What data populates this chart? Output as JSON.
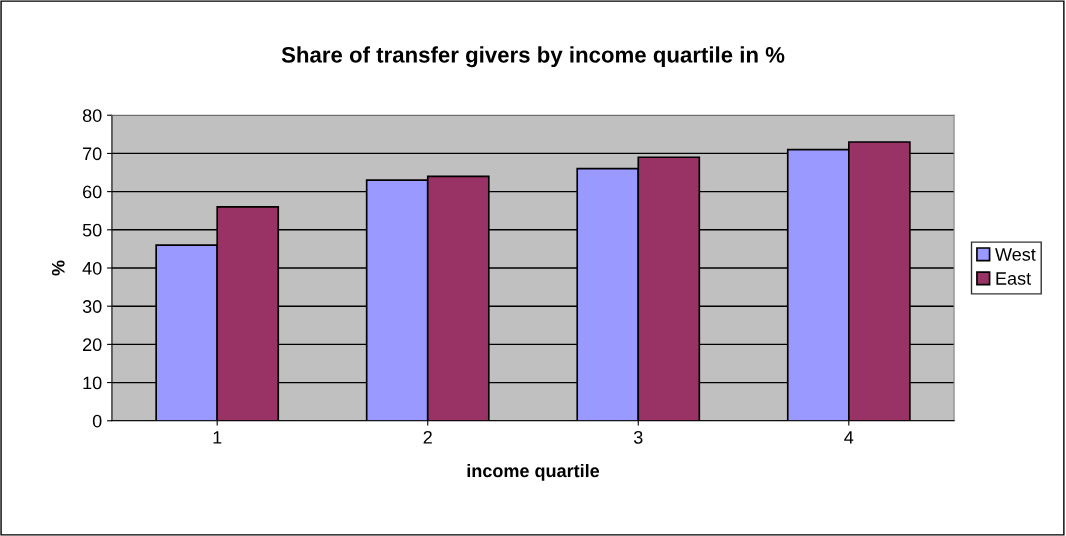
{
  "chart_data": {
    "type": "bar",
    "title": "Share of transfer givers by income quartile in %",
    "xlabel": "income quartile",
    "ylabel": "%",
    "categories": [
      "1",
      "2",
      "3",
      "4"
    ],
    "series": [
      {
        "name": "West",
        "color": "#9999ff",
        "values": [
          46,
          63,
          66,
          71
        ]
      },
      {
        "name": "East",
        "color": "#993366",
        "values": [
          56,
          64,
          69,
          73
        ]
      }
    ],
    "ylim": [
      0,
      80
    ],
    "yticks": [
      0,
      10,
      20,
      30,
      40,
      50,
      60,
      70,
      80
    ],
    "grid": "y",
    "legend": "right"
  }
}
